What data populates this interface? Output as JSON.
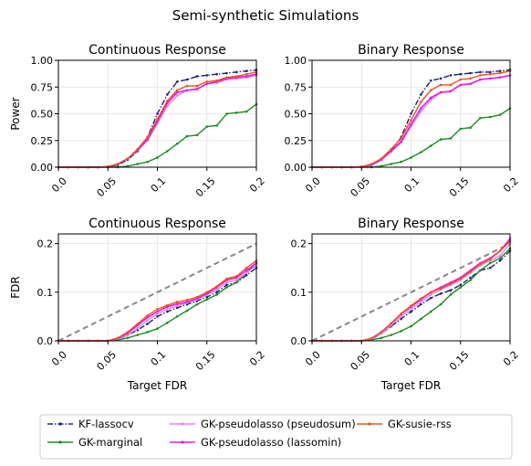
{
  "figure": {
    "suptitle": "Semi-synthetic Simulations"
  },
  "colors": {
    "kf": "#1a237e",
    "marginal": "#1e8b22",
    "pseudosum": "#f07cf0",
    "lassomin": "#e619e6",
    "susie": "#e8541c",
    "reference": "#888888",
    "grid": "#e0e0e0"
  },
  "legend": {
    "entries": [
      {
        "name": "KF-lassocv",
        "color": "#1a237e",
        "dash": "6,2,1.5,2"
      },
      {
        "name": "GK-marginal",
        "color": "#1e8b22",
        "dash": ""
      },
      {
        "name": "GK-pseudolasso (pseudosum)",
        "color": "#f07cf0",
        "dash": ""
      },
      {
        "name": "GK-pseudolasso (lassomin)",
        "color": "#e619e6",
        "dash": ""
      },
      {
        "name": "GK-susie-rss",
        "color": "#e8541c",
        "dash": ""
      }
    ]
  },
  "chart_data": [
    {
      "type": "line",
      "title": "Continuous Response",
      "xlabel": "",
      "ylabel": "Power",
      "xlim": [
        0,
        0.2
      ],
      "ylim": [
        0,
        1.0
      ],
      "xticks": [
        0.0,
        0.05,
        0.1,
        0.15,
        0.2
      ],
      "xticklabels": [
        "0.0",
        "0.05",
        "0.1",
        "0.15",
        "0.2"
      ],
      "yticks": [
        0.0,
        0.25,
        0.5,
        0.75,
        1.0
      ],
      "yticklabels": [
        "0.00",
        "0.25",
        "0.50",
        "0.75",
        "1.00"
      ],
      "grid": true,
      "x": [
        0,
        0.01,
        0.02,
        0.03,
        0.04,
        0.05,
        0.06,
        0.07,
        0.08,
        0.09,
        0.1,
        0.11,
        0.12,
        0.13,
        0.14,
        0.15,
        0.16,
        0.17,
        0.18,
        0.19,
        0.2
      ],
      "series": [
        {
          "name": "KF-lassocv",
          "values": [
            0,
            0,
            0,
            0,
            0,
            0.005,
            0.02,
            0.07,
            0.15,
            0.28,
            0.5,
            0.68,
            0.8,
            0.82,
            0.85,
            0.86,
            0.87,
            0.88,
            0.89,
            0.9,
            0.91
          ]
        },
        {
          "name": "GK-marginal",
          "values": [
            0,
            0,
            0,
            0,
            0,
            0,
            0,
            0.01,
            0.03,
            0.05,
            0.09,
            0.15,
            0.22,
            0.29,
            0.3,
            0.38,
            0.39,
            0.5,
            0.51,
            0.52,
            0.59
          ]
        },
        {
          "name": "GK-pseudolasso (pseudosum)",
          "values": [
            0,
            0,
            0,
            0,
            0,
            0.005,
            0.03,
            0.08,
            0.16,
            0.25,
            0.41,
            0.57,
            0.67,
            0.72,
            0.73,
            0.78,
            0.79,
            0.82,
            0.83,
            0.84,
            0.86
          ]
        },
        {
          "name": "GK-pseudolasso (lassomin)",
          "values": [
            0,
            0,
            0,
            0,
            0,
            0.005,
            0.03,
            0.08,
            0.16,
            0.26,
            0.43,
            0.6,
            0.7,
            0.72,
            0.73,
            0.78,
            0.8,
            0.83,
            0.84,
            0.85,
            0.87
          ]
        },
        {
          "name": "GK-susie-rss",
          "values": [
            0,
            0,
            0,
            0,
            0,
            0.005,
            0.03,
            0.08,
            0.17,
            0.28,
            0.45,
            0.62,
            0.72,
            0.76,
            0.76,
            0.8,
            0.81,
            0.84,
            0.85,
            0.87,
            0.89
          ]
        }
      ]
    },
    {
      "type": "line",
      "title": "Binary Response",
      "xlabel": "",
      "ylabel": "",
      "xlim": [
        0,
        0.2
      ],
      "ylim": [
        0,
        1.0
      ],
      "xticks": [
        0.0,
        0.05,
        0.1,
        0.15,
        0.2
      ],
      "xticklabels": [
        "0.0",
        "0.05",
        "0.1",
        "0.15",
        "0.2"
      ],
      "yticks": [
        0.0,
        0.25,
        0.5,
        0.75,
        1.0
      ],
      "yticklabels": [
        "0.00",
        "0.25",
        "0.50",
        "0.75",
        "1.00"
      ],
      "grid": true,
      "x": [
        0,
        0.01,
        0.02,
        0.03,
        0.04,
        0.05,
        0.06,
        0.07,
        0.08,
        0.09,
        0.1,
        0.11,
        0.12,
        0.13,
        0.14,
        0.15,
        0.16,
        0.17,
        0.18,
        0.19,
        0.2
      ],
      "series": [
        {
          "name": "KF-lassocv",
          "values": [
            0,
            0,
            0,
            0,
            0,
            0.005,
            0.02,
            0.07,
            0.15,
            0.28,
            0.5,
            0.68,
            0.81,
            0.83,
            0.86,
            0.87,
            0.88,
            0.89,
            0.89,
            0.9,
            0.91
          ]
        },
        {
          "name": "GK-marginal",
          "values": [
            0,
            0,
            0,
            0,
            0,
            0,
            0,
            0.01,
            0.03,
            0.05,
            0.09,
            0.14,
            0.2,
            0.26,
            0.27,
            0.36,
            0.37,
            0.46,
            0.47,
            0.49,
            0.55
          ]
        },
        {
          "name": "GK-pseudolasso (pseudosum)",
          "values": [
            0,
            0,
            0,
            0,
            0,
            0.005,
            0.02,
            0.07,
            0.15,
            0.23,
            0.38,
            0.52,
            0.63,
            0.7,
            0.71,
            0.77,
            0.78,
            0.82,
            0.83,
            0.84,
            0.86
          ]
        },
        {
          "name": "GK-pseudolasso (lassomin)",
          "values": [
            0,
            0,
            0,
            0,
            0,
            0.005,
            0.02,
            0.07,
            0.15,
            0.24,
            0.4,
            0.55,
            0.65,
            0.7,
            0.71,
            0.77,
            0.78,
            0.82,
            0.83,
            0.84,
            0.86
          ]
        },
        {
          "name": "GK-susie-rss",
          "values": [
            0,
            0,
            0,
            0,
            0,
            0.005,
            0.03,
            0.08,
            0.17,
            0.27,
            0.44,
            0.61,
            0.72,
            0.77,
            0.77,
            0.82,
            0.83,
            0.86,
            0.87,
            0.88,
            0.9
          ]
        }
      ]
    },
    {
      "type": "line",
      "title": "Continuous Response",
      "xlabel": "Target FDR",
      "ylabel": "FDR",
      "xlim": [
        0,
        0.2
      ],
      "ylim": [
        0,
        0.22
      ],
      "xticks": [
        0.0,
        0.05,
        0.1,
        0.15,
        0.2
      ],
      "xticklabels": [
        "0.0",
        "0.05",
        "0.1",
        "0.15",
        "0.2"
      ],
      "yticks": [
        0.0,
        0.1,
        0.2
      ],
      "yticklabels": [
        "0.0",
        "0.1",
        "0.2"
      ],
      "grid": true,
      "reference_line": {
        "x": [
          0,
          0.2
        ],
        "y": [
          0,
          0.2
        ]
      },
      "x": [
        0,
        0.01,
        0.02,
        0.03,
        0.04,
        0.05,
        0.06,
        0.07,
        0.08,
        0.09,
        0.1,
        0.11,
        0.12,
        0.13,
        0.14,
        0.15,
        0.16,
        0.17,
        0.18,
        0.19,
        0.2
      ],
      "series": [
        {
          "name": "KF-lassocv",
          "values": [
            0,
            0,
            0,
            0,
            0,
            0,
            0.003,
            0.012,
            0.022,
            0.035,
            0.05,
            0.06,
            0.068,
            0.075,
            0.082,
            0.09,
            0.1,
            0.115,
            0.12,
            0.135,
            0.15
          ]
        },
        {
          "name": "GK-marginal",
          "values": [
            0,
            0,
            0,
            0,
            0,
            0,
            0.002,
            0.006,
            0.012,
            0.018,
            0.025,
            0.037,
            0.05,
            0.062,
            0.075,
            0.085,
            0.095,
            0.11,
            0.12,
            0.14,
            0.16
          ]
        },
        {
          "name": "GK-pseudolasso (pseudosum)",
          "values": [
            0,
            0,
            0,
            0,
            0,
            0,
            0.004,
            0.012,
            0.026,
            0.042,
            0.055,
            0.065,
            0.072,
            0.078,
            0.085,
            0.095,
            0.105,
            0.12,
            0.125,
            0.14,
            0.155
          ]
        },
        {
          "name": "GK-pseudolasso (lassomin)",
          "values": [
            0,
            0,
            0,
            0,
            0,
            0,
            0.005,
            0.016,
            0.032,
            0.048,
            0.06,
            0.07,
            0.076,
            0.08,
            0.087,
            0.097,
            0.11,
            0.125,
            0.13,
            0.145,
            0.16
          ]
        },
        {
          "name": "GK-susie-rss",
          "values": [
            0,
            0,
            0,
            0,
            0,
            0,
            0.006,
            0.018,
            0.035,
            0.052,
            0.065,
            0.073,
            0.08,
            0.084,
            0.09,
            0.1,
            0.112,
            0.128,
            0.133,
            0.15,
            0.165
          ]
        }
      ]
    },
    {
      "type": "line",
      "title": "Binary Response",
      "xlabel": "Target FDR",
      "ylabel": "",
      "xlim": [
        0,
        0.2
      ],
      "ylim": [
        0,
        0.22
      ],
      "xticks": [
        0.0,
        0.05,
        0.1,
        0.15,
        0.2
      ],
      "xticklabels": [
        "0.0",
        "0.05",
        "0.1",
        "0.15",
        "0.2"
      ],
      "yticks": [
        0.0,
        0.1,
        0.2
      ],
      "yticklabels": [
        "0.0",
        "0.1",
        "0.2"
      ],
      "grid": true,
      "reference_line": {
        "x": [
          0,
          0.2
        ],
        "y": [
          0,
          0.2
        ]
      },
      "x": [
        0,
        0.01,
        0.02,
        0.03,
        0.04,
        0.05,
        0.06,
        0.07,
        0.08,
        0.09,
        0.1,
        0.11,
        0.12,
        0.13,
        0.14,
        0.15,
        0.16,
        0.17,
        0.18,
        0.19,
        0.2
      ],
      "series": [
        {
          "name": "KF-lassocv",
          "values": [
            0,
            0,
            0,
            0,
            0,
            0,
            0.003,
            0.015,
            0.03,
            0.045,
            0.06,
            0.075,
            0.088,
            0.097,
            0.104,
            0.115,
            0.13,
            0.145,
            0.15,
            0.165,
            0.185
          ]
        },
        {
          "name": "GK-marginal",
          "values": [
            0,
            0,
            0,
            0,
            0,
            0,
            0.002,
            0.006,
            0.012,
            0.02,
            0.03,
            0.045,
            0.06,
            0.075,
            0.095,
            0.11,
            0.125,
            0.145,
            0.16,
            0.17,
            0.19
          ]
        },
        {
          "name": "GK-pseudolasso (pseudosum)",
          "values": [
            0,
            0,
            0,
            0,
            0,
            0,
            0.004,
            0.015,
            0.032,
            0.05,
            0.065,
            0.08,
            0.095,
            0.105,
            0.115,
            0.125,
            0.14,
            0.155,
            0.165,
            0.175,
            0.2
          ]
        },
        {
          "name": "GK-pseudolasso (lassomin)",
          "values": [
            0,
            0,
            0,
            0,
            0,
            0,
            0.005,
            0.018,
            0.036,
            0.055,
            0.07,
            0.085,
            0.1,
            0.11,
            0.12,
            0.13,
            0.145,
            0.16,
            0.17,
            0.185,
            0.21
          ]
        },
        {
          "name": "GK-susie-rss",
          "values": [
            0,
            0,
            0,
            0,
            0,
            0,
            0.005,
            0.018,
            0.036,
            0.056,
            0.072,
            0.087,
            0.1,
            0.108,
            0.117,
            0.128,
            0.142,
            0.158,
            0.168,
            0.185,
            0.205
          ]
        }
      ]
    }
  ]
}
